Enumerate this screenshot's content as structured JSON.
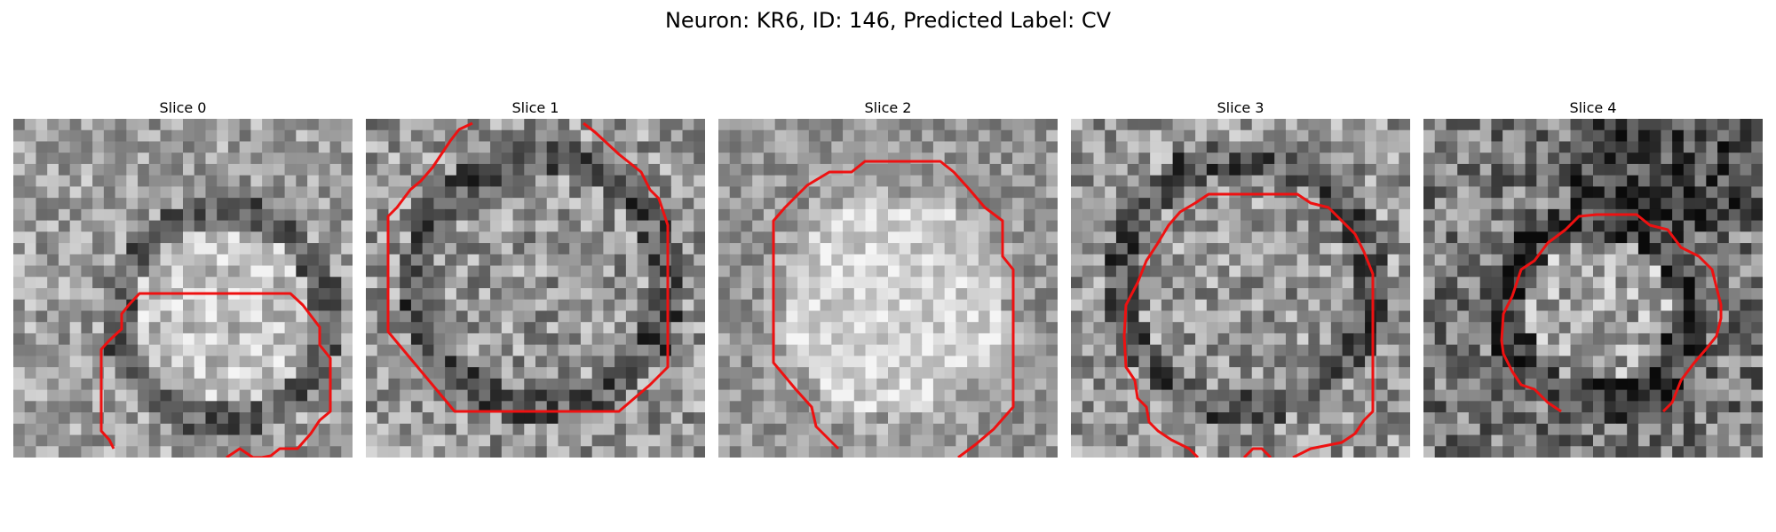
{
  "figure": {
    "title": "Neuron: KR6, ID: 146, Predicted Label: CV"
  },
  "contour_color": "#ee1111",
  "panels": [
    {
      "title": "Slice 0",
      "style": "bright-disk-dark-ring"
    },
    {
      "title": "Slice 1",
      "style": "mid-disk-dark-ring"
    },
    {
      "title": "Slice 2",
      "style": "bright-disk-light-ring"
    },
    {
      "title": "Slice 3",
      "style": "mid-disk-dark-ring"
    },
    {
      "title": "Slice 4",
      "style": "mid-disk-dark-surround"
    }
  ]
}
